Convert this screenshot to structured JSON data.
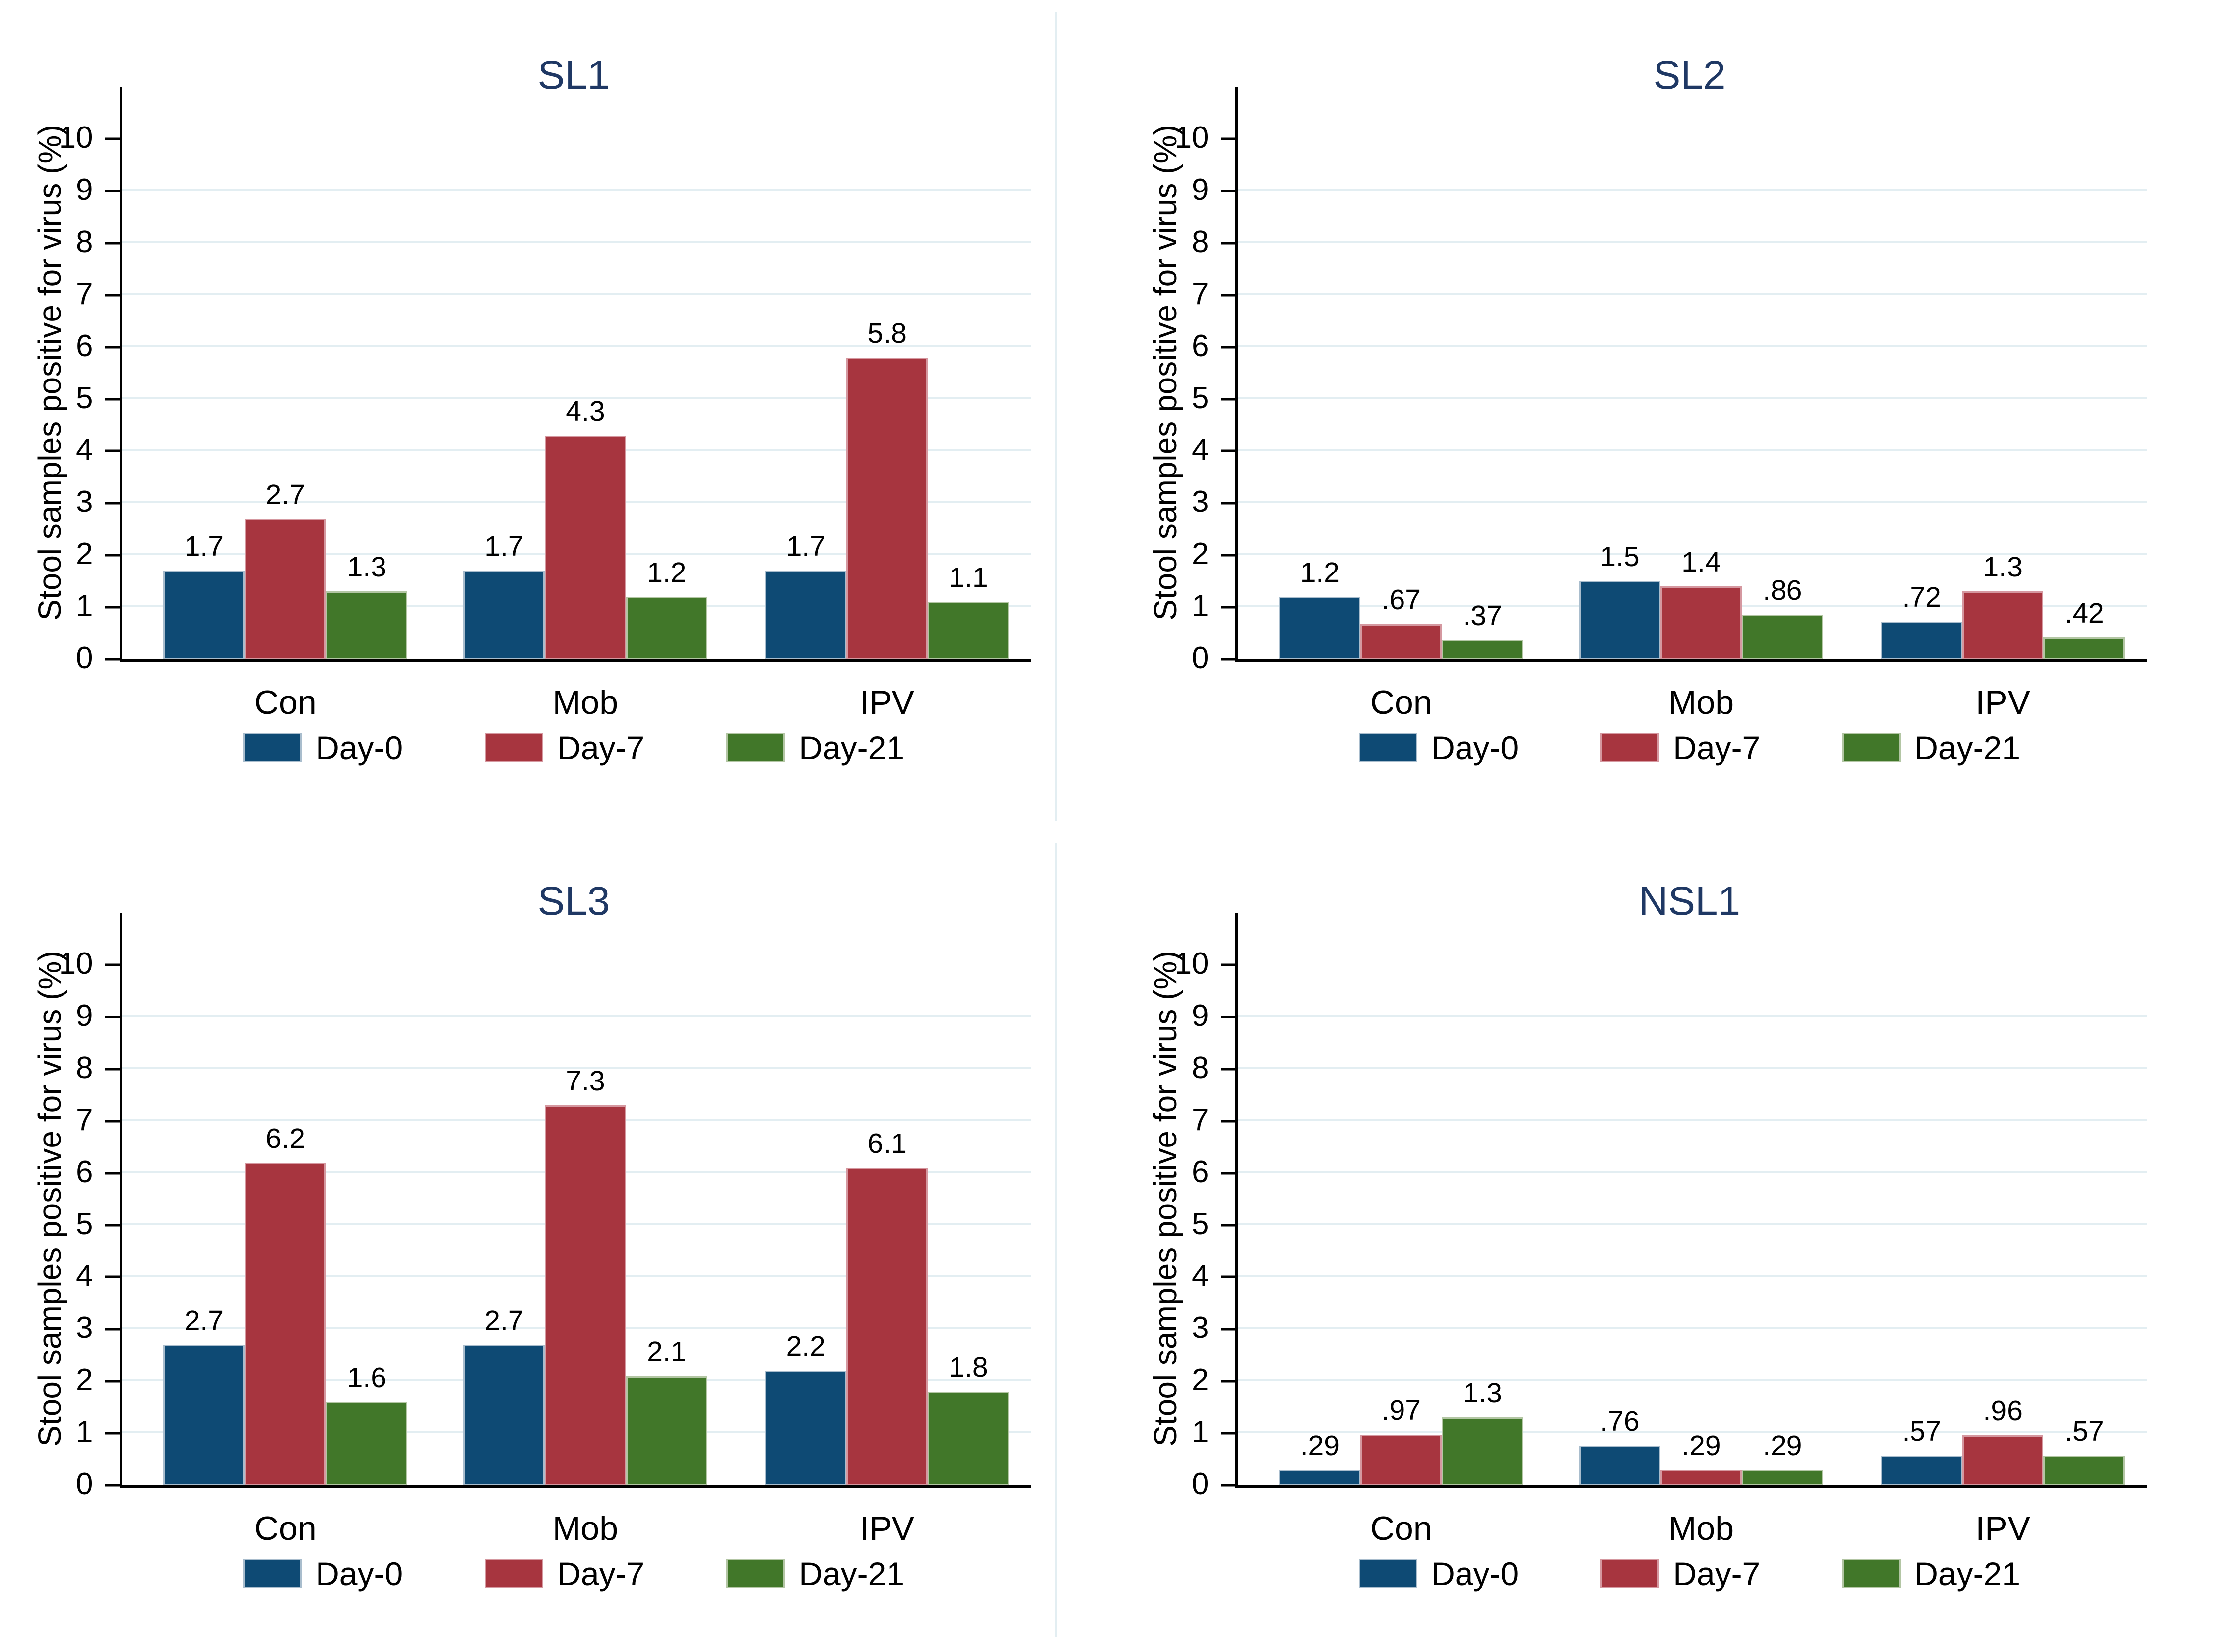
{
  "figure": {
    "background": "#ffffff",
    "divider_color": "#e3eef2"
  },
  "colors": {
    "title_text": "#1f3864",
    "gridline": "#e3eef2",
    "axis_line": "#000000",
    "label_text": "#000000"
  },
  "y_axis": {
    "title": "Stool samples positive for virus (%)",
    "ticks": [
      0,
      1,
      2,
      3,
      4,
      5,
      6,
      7,
      8,
      9,
      10
    ],
    "gridlines": [
      1,
      2,
      3,
      4,
      5,
      6,
      7,
      8,
      9
    ],
    "range": [
      0,
      10
    ],
    "draw_max": 11
  },
  "legend": {
    "items": [
      {
        "label": "Day-0",
        "color": "#0e4a74",
        "edge": "#a9bdcd"
      },
      {
        "label": "Day-7",
        "color": "#a7353f",
        "edge": "#d598a0"
      },
      {
        "label": "Day-21",
        "color": "#417729",
        "edge": "#b3c6a4"
      }
    ]
  },
  "chart_data": [
    {
      "type": "bar",
      "title": "SL1",
      "categories": [
        "Con",
        "Mob",
        "IPV"
      ],
      "ylabel": "Stool samples positive for virus (%)",
      "ylim": [
        0,
        10
      ],
      "grid": true,
      "legend_position": "bottom",
      "series": [
        {
          "name": "Day-0",
          "values": [
            1.7,
            1.7,
            1.7
          ],
          "labels": [
            "1.7",
            "1.7",
            "1.7"
          ]
        },
        {
          "name": "Day-7",
          "values": [
            2.7,
            4.3,
            5.8
          ],
          "labels": [
            "2.7",
            "4.3",
            "5.8"
          ]
        },
        {
          "name": "Day-21",
          "values": [
            1.3,
            1.2,
            1.1
          ],
          "labels": [
            "1.3",
            "1.2",
            "1.1"
          ]
        }
      ]
    },
    {
      "type": "bar",
      "title": "SL2",
      "categories": [
        "Con",
        "Mob",
        "IPV"
      ],
      "ylabel": "Stool samples positive for virus (%)",
      "ylim": [
        0,
        10
      ],
      "grid": true,
      "legend_position": "bottom",
      "series": [
        {
          "name": "Day-0",
          "values": [
            1.2,
            1.5,
            0.72
          ],
          "labels": [
            "1.2",
            "1.5",
            ".72"
          ]
        },
        {
          "name": "Day-7",
          "values": [
            0.67,
            1.4,
            1.3
          ],
          "labels": [
            ".67",
            "1.4",
            "1.3"
          ]
        },
        {
          "name": "Day-21",
          "values": [
            0.37,
            0.86,
            0.42
          ],
          "labels": [
            ".37",
            ".86",
            ".42"
          ]
        }
      ]
    },
    {
      "type": "bar",
      "title": "SL3",
      "categories": [
        "Con",
        "Mob",
        "IPV"
      ],
      "ylabel": "Stool samples positive for virus (%)",
      "ylim": [
        0,
        10
      ],
      "grid": true,
      "legend_position": "bottom",
      "series": [
        {
          "name": "Day-0",
          "values": [
            2.7,
            2.7,
            2.2
          ],
          "labels": [
            "2.7",
            "2.7",
            "2.2"
          ]
        },
        {
          "name": "Day-7",
          "values": [
            6.2,
            7.3,
            6.1
          ],
          "labels": [
            "6.2",
            "7.3",
            "6.1"
          ]
        },
        {
          "name": "Day-21",
          "values": [
            1.6,
            2.1,
            1.8
          ],
          "labels": [
            "1.6",
            "2.1",
            "1.8"
          ]
        }
      ]
    },
    {
      "type": "bar",
      "title": "NSL1",
      "categories": [
        "Con",
        "Mob",
        "IPV"
      ],
      "ylabel": "Stool samples positive for virus (%)",
      "ylim": [
        0,
        10
      ],
      "grid": true,
      "legend_position": "bottom",
      "series": [
        {
          "name": "Day-0",
          "values": [
            0.29,
            0.76,
            0.57
          ],
          "labels": [
            ".29",
            ".76",
            ".57"
          ]
        },
        {
          "name": "Day-7",
          "values": [
            0.97,
            0.29,
            0.96
          ],
          "labels": [
            ".97",
            ".29",
            ".96"
          ]
        },
        {
          "name": "Day-21",
          "values": [
            1.3,
            0.29,
            0.57
          ],
          "labels": [
            "1.3",
            ".29",
            ".57"
          ]
        }
      ]
    }
  ]
}
